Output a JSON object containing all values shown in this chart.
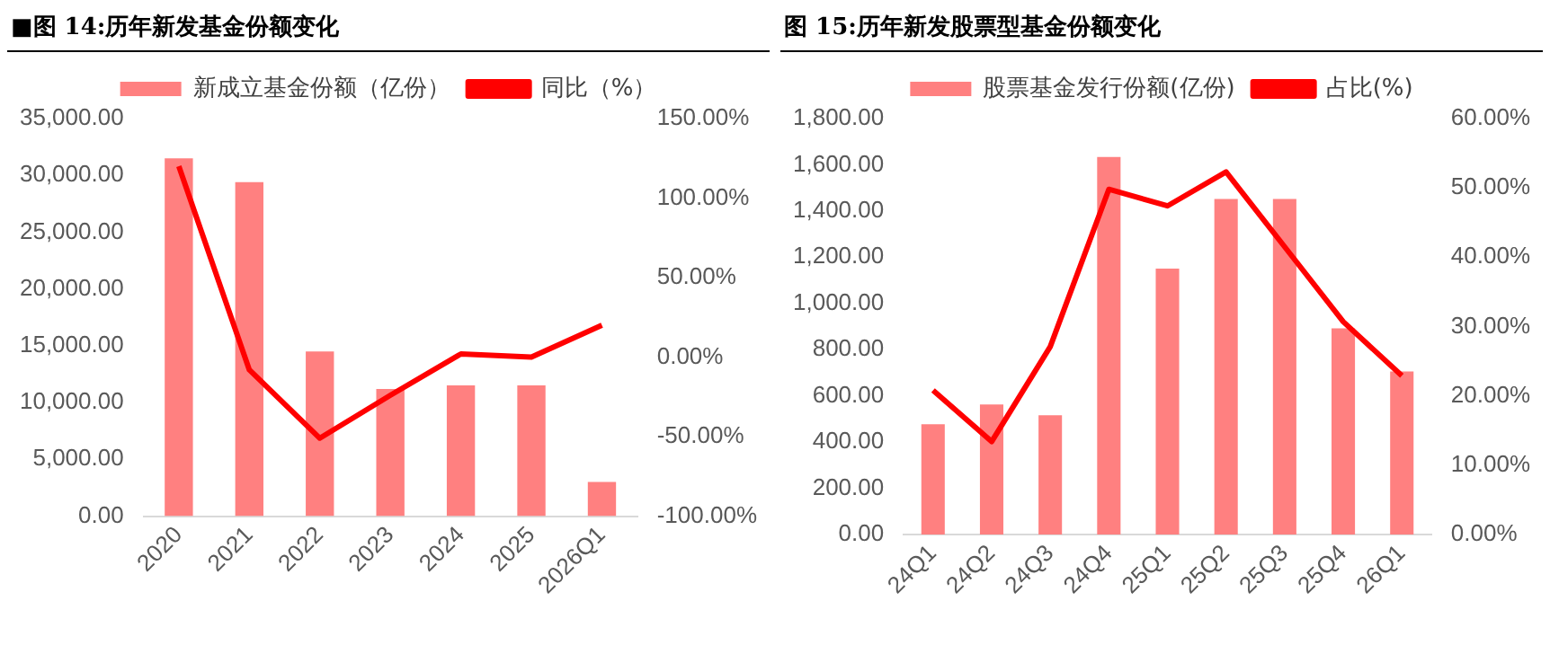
{
  "chart_data": [
    {
      "type": "bar",
      "title": "■图 14:历年新发基金份额变化",
      "categories": [
        "2020",
        "2021",
        "2022",
        "2023",
        "2024",
        "2025",
        "2026Q1"
      ],
      "series": [
        {
          "name": "新成立基金份额（亿份）",
          "color": "#ff8080",
          "values": [
            31500,
            29400,
            14500,
            11200,
            11500,
            11500,
            3000
          ]
        },
        {
          "name": "同比（%）",
          "type": "line",
          "axis": "y2",
          "color": "#ff0000",
          "values": [
            120,
            -8,
            -51,
            -24,
            2,
            0,
            20
          ]
        }
      ],
      "ylim": [
        0,
        35000
      ],
      "yticks": [
        {
          "value": 0,
          "label": "0.00"
        },
        {
          "value": 5000,
          "label": "5,000.00"
        },
        {
          "value": 10000,
          "label": "10,000.00"
        },
        {
          "value": 15000,
          "label": "15,000.00"
        },
        {
          "value": 20000,
          "label": "20,000.00"
        },
        {
          "value": 25000,
          "label": "25,000.00"
        },
        {
          "value": 30000,
          "label": "30,000.00"
        },
        {
          "value": 35000,
          "label": "35,000.00"
        }
      ],
      "y2lim": [
        -100,
        150
      ],
      "y2ticks": [
        {
          "value": -100,
          "label": "-100.00%"
        },
        {
          "value": -50,
          "label": "-50.00%"
        },
        {
          "value": 0,
          "label": "0.00%"
        },
        {
          "value": 50,
          "label": "50.00%"
        },
        {
          "value": 100,
          "label": "100.00%"
        },
        {
          "value": 150,
          "label": "150.00%"
        }
      ],
      "grid": false,
      "legend": "top",
      "marker": "none"
    },
    {
      "type": "bar",
      "title": "图 15:历年新发股票型基金份额变化",
      "categories": [
        "24Q1",
        "24Q2",
        "24Q3",
        "24Q4",
        "25Q1",
        "25Q2",
        "25Q3",
        "25Q4",
        "26Q1"
      ],
      "series": [
        {
          "name": "股票基金发行份额(亿份)",
          "color": "#ff8080",
          "values": [
            477,
            563,
            516,
            1634,
            1151,
            1452,
            1452,
            892,
            706
          ]
        },
        {
          "name": "占比(%)",
          "type": "line",
          "axis": "y2",
          "color": "#ff0000",
          "values": [
            20.8,
            13.4,
            27.1,
            49.8,
            47.4,
            52.3,
            41.5,
            30.7,
            22.9
          ]
        }
      ],
      "ylim": [
        0,
        1800
      ],
      "yticks": [
        {
          "value": 0,
          "label": "0.00"
        },
        {
          "value": 200,
          "label": "200.00"
        },
        {
          "value": 400,
          "label": "400.00"
        },
        {
          "value": 600,
          "label": "600.00"
        },
        {
          "value": 800,
          "label": "800.00"
        },
        {
          "value": 1000,
          "label": "1,000.00"
        },
        {
          "value": 1200,
          "label": "1,200.00"
        },
        {
          "value": 1400,
          "label": "1,400.00"
        },
        {
          "value": 1600,
          "label": "1,600.00"
        },
        {
          "value": 1800,
          "label": "1,800.00"
        }
      ],
      "y2lim": [
        0,
        60
      ],
      "y2ticks": [
        {
          "value": 0,
          "label": "0.00%"
        },
        {
          "value": 10,
          "label": "10.00%"
        },
        {
          "value": 20,
          "label": "20.00%"
        },
        {
          "value": 30,
          "label": "30.00%"
        },
        {
          "value": 40,
          "label": "40.00%"
        },
        {
          "value": 50,
          "label": "50.00%"
        },
        {
          "value": 60,
          "label": "60.00%"
        }
      ],
      "grid": false,
      "legend": "top",
      "marker": "none"
    }
  ]
}
